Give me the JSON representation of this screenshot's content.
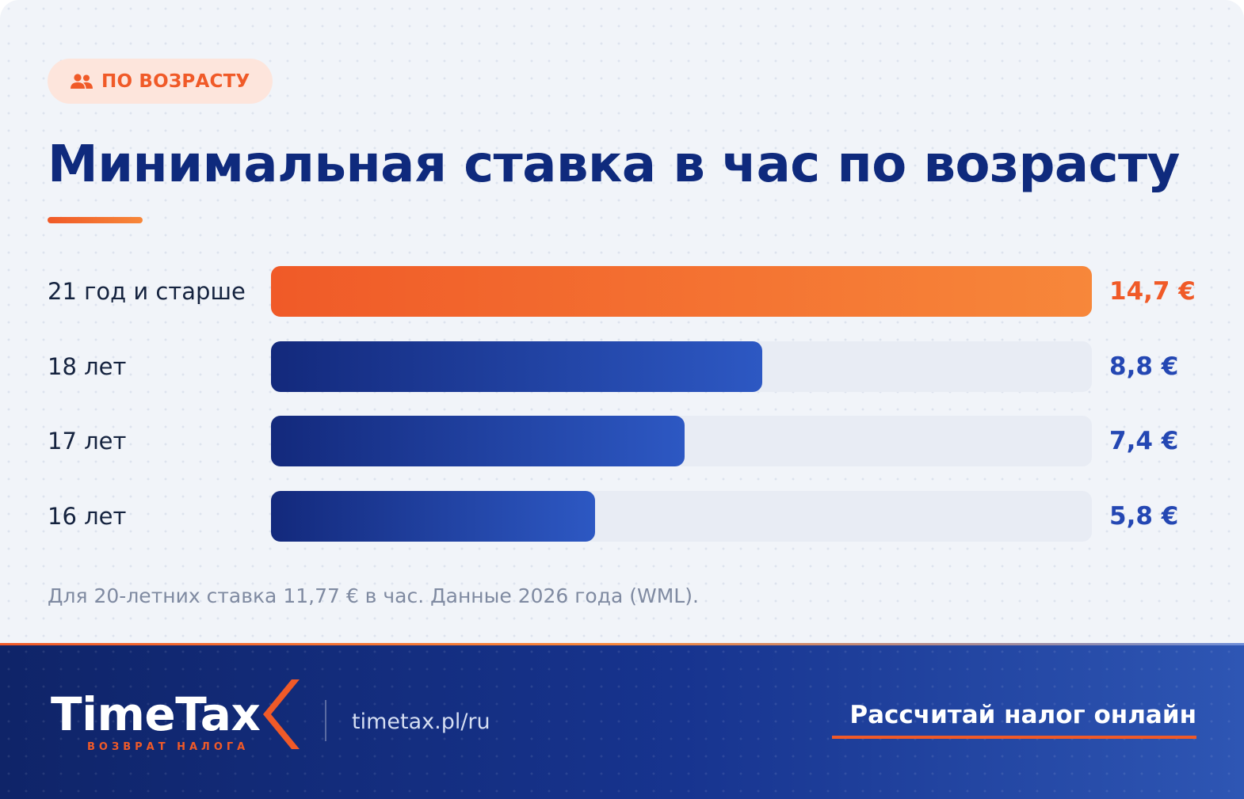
{
  "badge": {
    "icon": "people-icon",
    "label": "ПО ВОЗРАСТУ"
  },
  "title": "Минимальная ставка в час по возрасту",
  "chart_data": {
    "type": "bar",
    "orientation": "horizontal",
    "title": "Минимальная ставка в час по возрасту",
    "categories": [
      "21 год и старше",
      "18 лет",
      "17 лет",
      "16 лет"
    ],
    "values": [
      14.7,
      8.8,
      7.4,
      5.8
    ],
    "value_labels": [
      "14,7 €",
      "8,8 €",
      "7,4 €",
      "5,8 €"
    ],
    "xlim": [
      0,
      14.7
    ],
    "highlight_index": 0,
    "colors": {
      "highlight": "#f05a28",
      "highlight_end": "#f7873a",
      "bar": "#13297c",
      "bar_end": "#2d58c3",
      "track": "#e8ecf4"
    },
    "value_colors": [
      "#f05a28",
      "#2447b3",
      "#2447b3",
      "#2447b3"
    ],
    "grid": false,
    "legend": "none"
  },
  "note": "Для 20-летних ставка 11,77 € в час. Данные 2026 года (WML).",
  "footer": {
    "logo_text": "TimeTax",
    "logo_sub": "ВОЗВРАТ НАЛОГА",
    "link": "timetax.pl/ru",
    "cta": "Рассчитай налог онлайн"
  },
  "colors": {
    "title": "#0f2a7d",
    "accent": "#f05a28",
    "footer_bg": "#142f82"
  }
}
